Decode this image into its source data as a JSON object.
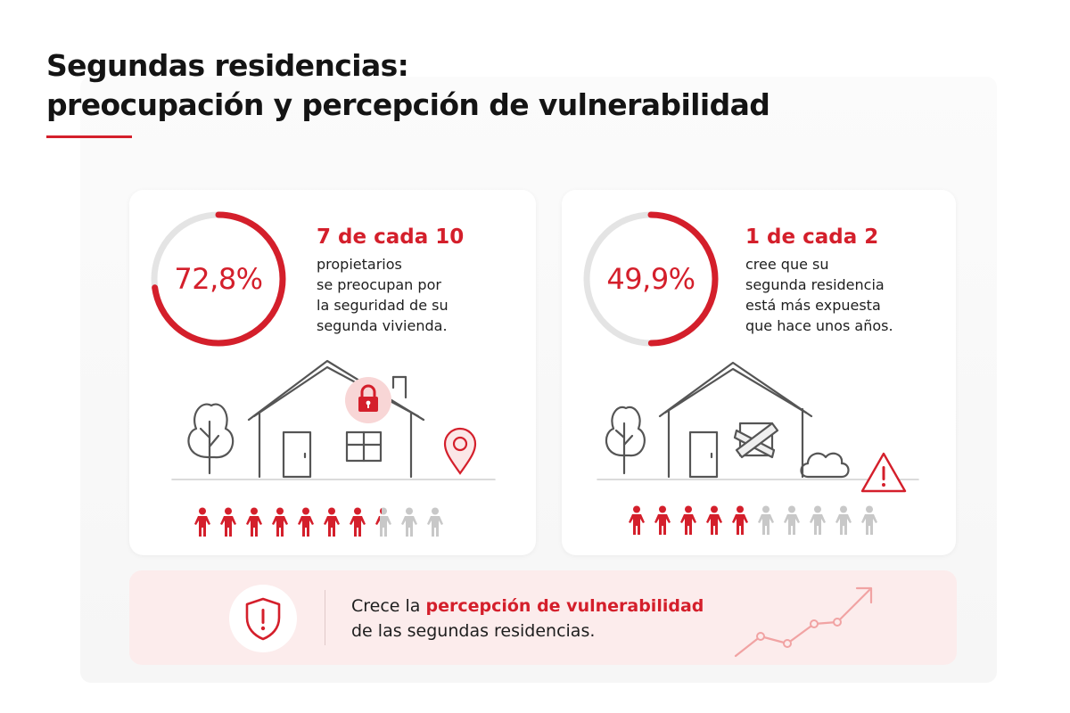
{
  "title": {
    "line1": "Segundas residencias:",
    "line2": "preocupación y percepción de vulnerabilidad"
  },
  "colors": {
    "accent": "#d41f2b",
    "muted": "#c8c8c8",
    "banner_bg": "#fcecec"
  },
  "stats": [
    {
      "value": "72,8%",
      "percent": 72.8,
      "headline": "7 de cada 10",
      "body": [
        "propietarios",
        "se preocupan por",
        "la seguridad de su",
        "segunda vivienda."
      ],
      "people_total": 10,
      "people_highlighted": 7.28,
      "icons": [
        "tree-icon",
        "house-icon",
        "lock-icon",
        "location-pin-icon",
        "person-icon"
      ]
    },
    {
      "value": "49,9%",
      "percent": 49.9,
      "headline": "1 de cada 2",
      "body": [
        "cree que su",
        "segunda residencia",
        "está más expuesta",
        "que hace unos años."
      ],
      "people_total": 10,
      "people_highlighted": 5,
      "icons": [
        "tree-icon",
        "house-icon",
        "boarded-window-icon",
        "bush-icon",
        "warning-icon",
        "person-icon"
      ]
    }
  ],
  "banner": {
    "line1_prefix": "Crece la",
    "line1_highlight": "percepción de vulnerabilidad",
    "line2": "de las segundas residencias.",
    "icons": [
      "shield-alert-icon",
      "trend-up-icon"
    ]
  }
}
